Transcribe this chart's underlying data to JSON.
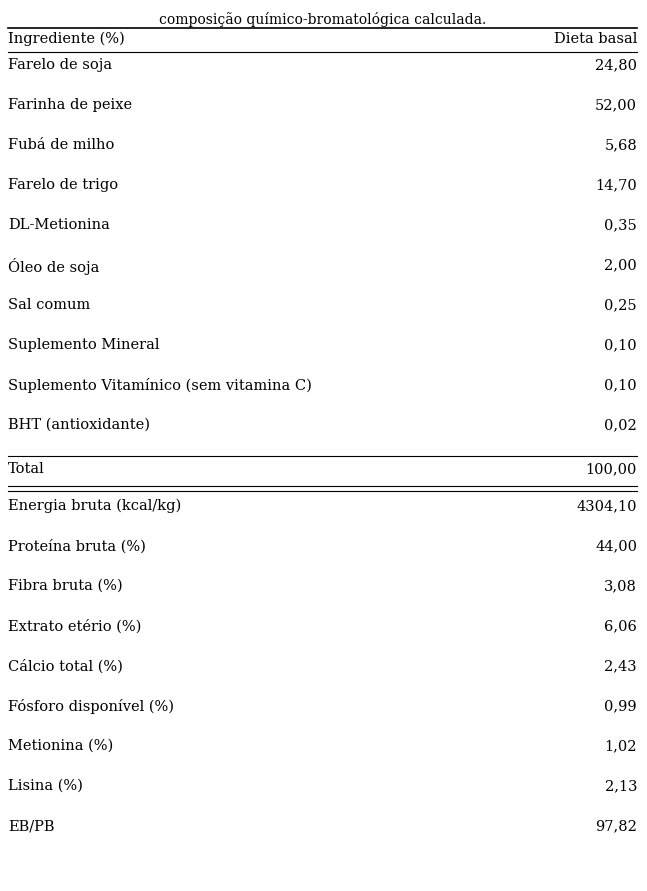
{
  "title_line2": "composição químico-bromatológica calculada.",
  "col_header_left": "Ingrediente (%)",
  "col_header_right": "Dieta basal",
  "ingredients": [
    [
      "Farelo de soja",
      "24,80"
    ],
    [
      "Farinha de peixe",
      "52,00"
    ],
    [
      "Fubá de milho",
      "5,68"
    ],
    [
      "Farelo de trigo",
      "14,70"
    ],
    [
      "DL-Metionina",
      "0,35"
    ],
    [
      "Óleo de soja",
      "2,00"
    ],
    [
      "Sal comum",
      "0,25"
    ],
    [
      "Suplemento Mineral",
      "0,10"
    ],
    [
      "Suplemento Vitamínico (sem vitamina C)",
      "0,10"
    ],
    [
      "BHT (antioxidante)",
      "0,02"
    ]
  ],
  "total_label": "Total",
  "total_value": "100,00",
  "composition": [
    [
      "Energia bruta (kcal/kg)",
      "4304,10"
    ],
    [
      "Proteína bruta (%)",
      "44,00"
    ],
    [
      "Fibra bruta (%)",
      "3,08"
    ],
    [
      "Extrato etério (%)",
      "6,06"
    ],
    [
      "Cálcio total (%)",
      "2,43"
    ],
    [
      "Fósforo disponível (%)",
      "0,99"
    ],
    [
      "Metionina (%)",
      "1,02"
    ],
    [
      "Lisina (%)",
      "2,13"
    ],
    [
      "EB/PB",
      "97,82"
    ]
  ],
  "bg_color": "#ffffff",
  "text_color": "#000000",
  "font_size": 10.5,
  "title_font_size": 10
}
